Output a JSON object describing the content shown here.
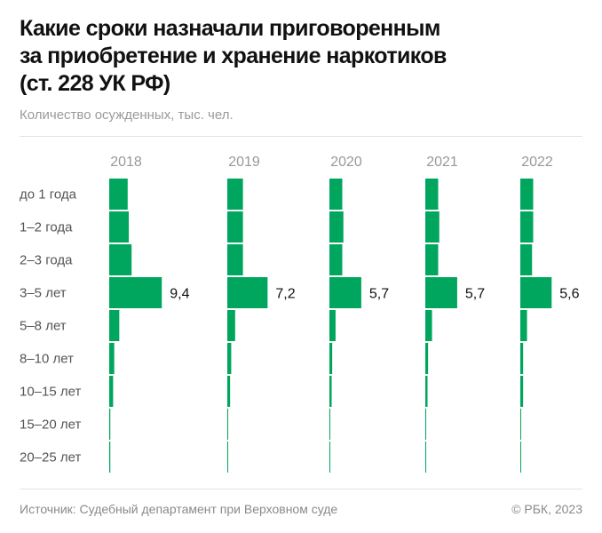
{
  "chart_data": {
    "type": "bar",
    "orientation": "horizontal",
    "layout": "small-multiples",
    "title_lines": [
      "Какие сроки назначали приговоренным",
      "за приобретение и хранение наркотиков",
      "(ст. 228 УК РФ)"
    ],
    "subtitle": "Количество осужденных, тыс. чел.",
    "categories": [
      "до 1 года",
      "1–2 года",
      "2–3 года",
      "3–5 лет",
      "5–8 лет",
      "8–10 лет",
      "10–15 лет",
      "15–20 лет",
      "20–25 лет"
    ],
    "series": [
      {
        "name": "2018",
        "values": [
          3.3,
          3.5,
          4.0,
          9.4,
          1.8,
          0.9,
          0.7,
          0.2,
          0.2
        ],
        "label": "9,4"
      },
      {
        "name": "2019",
        "values": [
          2.8,
          2.8,
          2.8,
          7.2,
          1.4,
          0.7,
          0.5,
          0.1,
          0.1
        ],
        "label": "7,2"
      },
      {
        "name": "2020",
        "values": [
          2.3,
          2.5,
          2.3,
          5.7,
          1.1,
          0.5,
          0.4,
          0.1,
          0.1
        ],
        "label": "5,7"
      },
      {
        "name": "2021",
        "values": [
          2.3,
          2.5,
          2.3,
          5.7,
          1.2,
          0.5,
          0.4,
          0.1,
          0.1
        ],
        "label": "5,7"
      },
      {
        "name": "2022",
        "values": [
          2.3,
          2.3,
          2.1,
          5.6,
          1.2,
          0.5,
          0.5,
          0.1,
          0.1
        ],
        "label": "5,6"
      }
    ],
    "labeled_category": "3–5 лет",
    "grid": false,
    "bar_color": "#00a65e"
  },
  "footer": {
    "source": "Источник: Судебный департамент при Верховном суде",
    "copyright": "© РБК, 2023"
  }
}
